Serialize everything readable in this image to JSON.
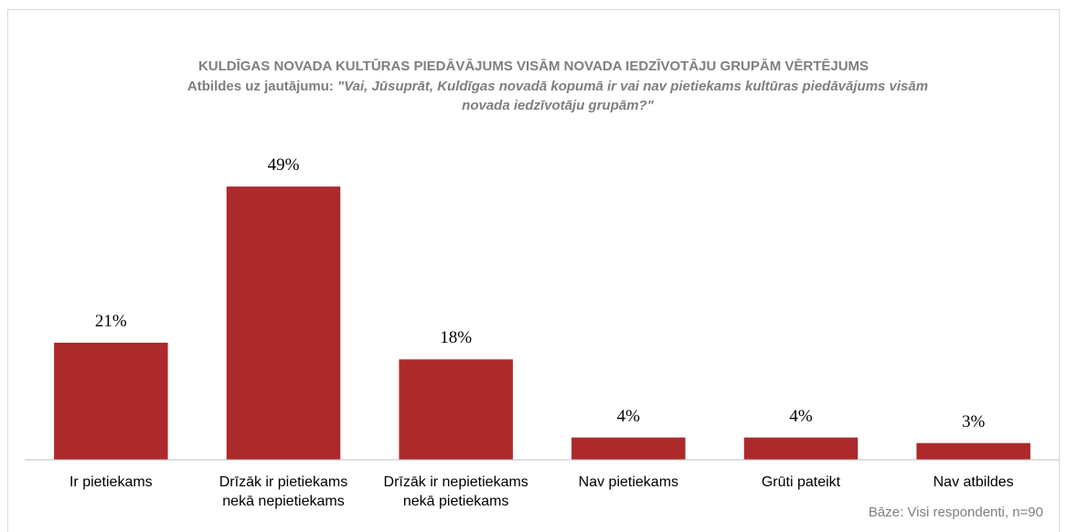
{
  "chart_data": {
    "type": "bar",
    "title": "KULDĪGAS NOVADA KULTŪRAS PIEDĀVĀJUMS VISĀM NOVADA IEDZĪVOTĀJU GRUPĀM VĒRTĒJUMS",
    "subtitle": {
      "prefix": "Atbildes uz jautājumu:",
      "question": "\"Vai, Jūsuprāt, Kuldīgas novadā kopumā ir vai nav pietiekams kultūras piedāvājums visām novada iedzīvotāju grupām?\""
    },
    "categories": [
      "Ir pietiekams",
      "Drīzāk ir pietiekams\nnekā nepietiekams",
      "Drīzāk ir nepietiekams\nnekā pietiekams",
      "Nav pietiekams",
      "Grūti pateikt",
      "Nav atbildes"
    ],
    "values": [
      21,
      49,
      18,
      4,
      4,
      3
    ],
    "value_labels": [
      "21%",
      "49%",
      "18%",
      "4%",
      "4%",
      "3%"
    ],
    "color": "#ac2a2c",
    "ylim": [
      0,
      50
    ],
    "note": "Bāze: Visi respondenti, n=90"
  }
}
